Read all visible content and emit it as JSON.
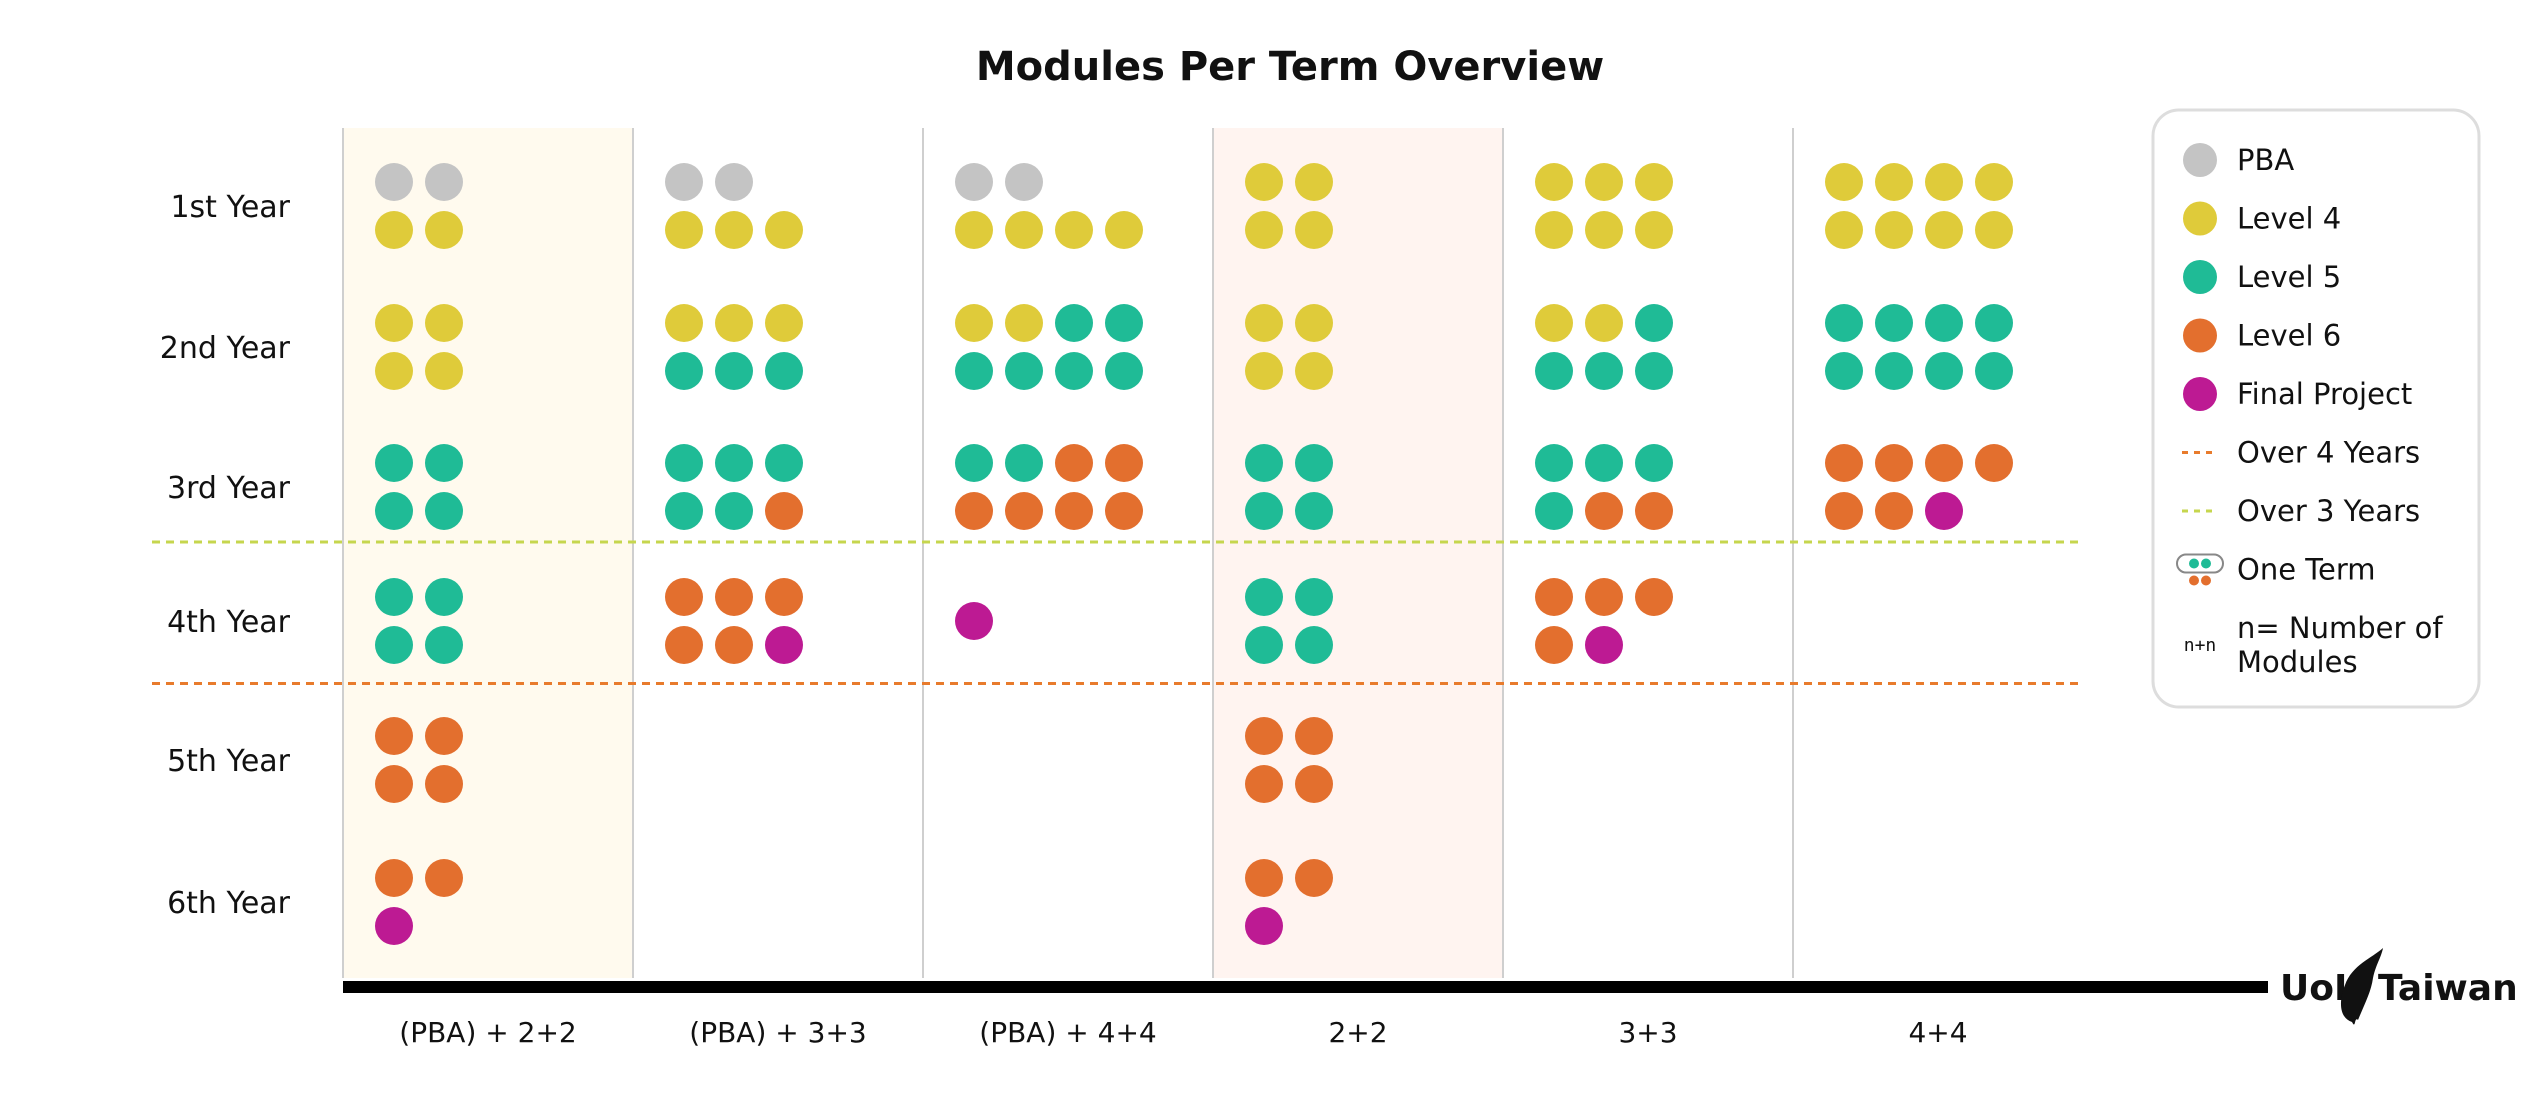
{
  "chart_data": {
    "type": "dot-matrix",
    "title": "Modules Per Term Overview",
    "rows": [
      "1st Year",
      "2nd Year",
      "3rd Year",
      "4th Year",
      "5th Year",
      "6th Year"
    ],
    "columns": [
      "(PBA) + 2+2",
      "(PBA) + 3+3",
      "(PBA) + 4+4",
      "2+2",
      "3+3",
      "4+4"
    ],
    "categories": {
      "P": {
        "label": "PBA",
        "color": "#c4c4c4"
      },
      "4": {
        "label": "Level 4",
        "color": "#dfcb3a"
      },
      "5": {
        "label": "Level 5",
        "color": "#1fbb96"
      },
      "6": {
        "label": "Level 6",
        "color": "#e36f2e"
      },
      "F": {
        "label": "Final Project",
        "color": "#bd1a93"
      }
    },
    "cells": [
      [
        [
          [
            "P",
            "P"
          ],
          [
            "4",
            "4"
          ]
        ],
        [
          [
            "4",
            "4"
          ],
          [
            "4",
            "4"
          ]
        ],
        [
          [
            "5",
            "5"
          ],
          [
            "5",
            "5"
          ]
        ],
        [
          [
            "5",
            "5"
          ],
          [
            "5",
            "5"
          ]
        ],
        [
          [
            "6",
            "6"
          ],
          [
            "6",
            "6"
          ]
        ],
        [
          [
            "6",
            "6"
          ],
          [
            "F"
          ]
        ]
      ],
      [
        [
          [
            "P",
            "P"
          ],
          [
            "4",
            "4",
            "4"
          ]
        ],
        [
          [
            "4",
            "4",
            "4"
          ],
          [
            "5",
            "5",
            "5"
          ]
        ],
        [
          [
            "5",
            "5",
            "5"
          ],
          [
            "5",
            "5",
            "6"
          ]
        ],
        [
          [
            "6",
            "6",
            "6"
          ],
          [
            "6",
            "6",
            "F"
          ]
        ],
        [],
        []
      ],
      [
        [
          [
            "P",
            "P"
          ],
          [
            "4",
            "4",
            "4",
            "4"
          ]
        ],
        [
          [
            "4",
            "4",
            "5",
            "5"
          ],
          [
            "5",
            "5",
            "5",
            "5"
          ]
        ],
        [
          [
            "5",
            "5",
            "6",
            "6"
          ],
          [
            "6",
            "6",
            "6",
            "6"
          ]
        ],
        [
          [
            "F"
          ]
        ],
        [],
        []
      ],
      [
        [
          [
            "4",
            "4"
          ],
          [
            "4",
            "4"
          ]
        ],
        [
          [
            "4",
            "4"
          ],
          [
            "4",
            "4"
          ]
        ],
        [
          [
            "5",
            "5"
          ],
          [
            "5",
            "5"
          ]
        ],
        [
          [
            "5",
            "5"
          ],
          [
            "5",
            "5"
          ]
        ],
        [
          [
            "6",
            "6"
          ],
          [
            "6",
            "6"
          ]
        ],
        [
          [
            "6",
            "6"
          ],
          [
            "F"
          ]
        ]
      ],
      [
        [
          [
            "4",
            "4",
            "4"
          ],
          [
            "4",
            "4",
            "4"
          ]
        ],
        [
          [
            "4",
            "4",
            "5"
          ],
          [
            "5",
            "5",
            "5"
          ]
        ],
        [
          [
            "5",
            "5",
            "5"
          ],
          [
            "5",
            "6",
            "6"
          ]
        ],
        [
          [
            "6",
            "6",
            "6"
          ],
          [
            "6",
            "F"
          ]
        ],
        [],
        []
      ],
      [
        [
          [
            "4",
            "4",
            "4",
            "4"
          ],
          [
            "4",
            "4",
            "4",
            "4"
          ]
        ],
        [
          [
            "5",
            "5",
            "5",
            "5"
          ],
          [
            "5",
            "5",
            "5",
            "5"
          ]
        ],
        [
          [
            "6",
            "6",
            "6",
            "6"
          ],
          [
            "6",
            "6",
            "F"
          ]
        ],
        [],
        [],
        []
      ]
    ],
    "highlighted_columns": [
      {
        "column": "(PBA) + 2+2",
        "color": "#fffaee"
      },
      {
        "column": "2+2",
        "color": "#fff4f0"
      }
    ],
    "reference_lines": [
      {
        "label": "Over 3 Years",
        "after_row": "3rd Year",
        "color": "#c6d64e",
        "style": "dashed"
      },
      {
        "label": "Over 4 Years",
        "after_row": "4th Year",
        "color": "#e87b2c",
        "style": "dashed"
      }
    ],
    "legend": {
      "placement": "top-right",
      "items": [
        {
          "type": "dot",
          "category": "P",
          "label": "PBA"
        },
        {
          "type": "dot",
          "category": "4",
          "label": "Level 4"
        },
        {
          "type": "dot",
          "category": "5",
          "label": "Level 5"
        },
        {
          "type": "dot",
          "category": "6",
          "label": "Level 6"
        },
        {
          "type": "dot",
          "category": "F",
          "label": "Final Project"
        },
        {
          "type": "dash",
          "color": "#e87b2c",
          "label": "Over 4 Years"
        },
        {
          "type": "dash",
          "color": "#c6d64e",
          "label": "Over 3 Years"
        },
        {
          "type": "term",
          "label": "One Term"
        },
        {
          "type": "text",
          "symbol": "n+n",
          "label": [
            "n= Number of",
            "Modules"
          ]
        }
      ]
    }
  },
  "logo": {
    "left": "UoL",
    "right": "Taiwan"
  }
}
